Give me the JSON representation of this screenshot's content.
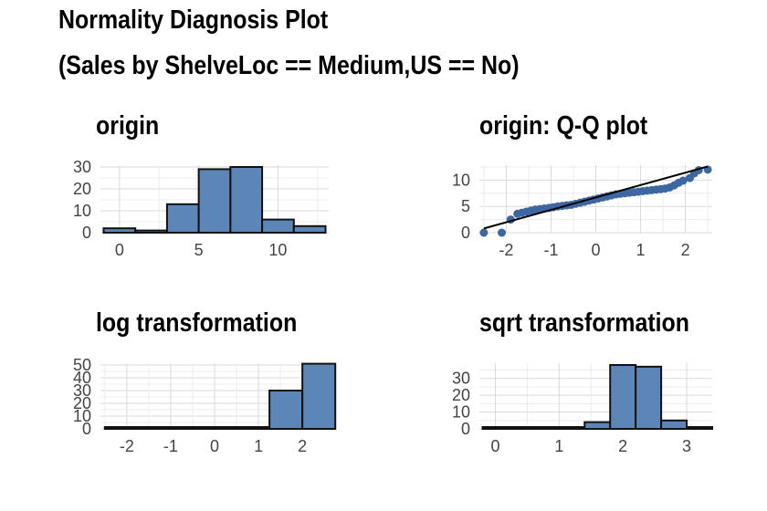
{
  "title": "Normality Diagnosis Plot",
  "subtitle": "(Sales by ShelveLoc == Medium,US == No)",
  "colors": {
    "fill": "#5b86b7",
    "point": "#3d67a0",
    "stroke": "#111111",
    "grid": "#dddddd",
    "tick_text": "#444444"
  },
  "chart_data": [
    {
      "type": "bar",
      "title": "origin",
      "bins": [
        [
          -1,
          1
        ],
        [
          1,
          3
        ],
        [
          3,
          5
        ],
        [
          5,
          7
        ],
        [
          7,
          9
        ],
        [
          9,
          11
        ],
        [
          11,
          13
        ]
      ],
      "values": [
        2,
        1,
        13,
        29,
        30,
        6,
        3
      ],
      "xlim": [
        -1.2,
        13.2
      ],
      "ylim": [
        0,
        30
      ],
      "xticks": [
        0,
        5,
        10
      ],
      "yticks": [
        0,
        10,
        20,
        30
      ]
    },
    {
      "type": "scatter",
      "title": "origin: Q-Q plot",
      "xlabel": "",
      "ylabel": "",
      "xlim": [
        -2.6,
        2.6
      ],
      "ylim": [
        0,
        12.5
      ],
      "xticks": [
        -2,
        -1,
        0,
        1,
        2
      ],
      "yticks": [
        0,
        5,
        10
      ],
      "reference_line": {
        "x": [
          -2.5,
          2.5
        ],
        "y": [
          0.8,
          12.6
        ]
      },
      "points": [
        [
          -2.5,
          0.0
        ],
        [
          -2.1,
          0.0
        ],
        [
          -1.9,
          2.5
        ],
        [
          -1.75,
          3.6
        ],
        [
          -1.65,
          3.8
        ],
        [
          -1.55,
          4.0
        ],
        [
          -1.45,
          4.2
        ],
        [
          -1.35,
          4.4
        ],
        [
          -1.25,
          4.5
        ],
        [
          -1.15,
          4.6
        ],
        [
          -1.05,
          4.7
        ],
        [
          -0.95,
          4.85
        ],
        [
          -0.85,
          5.0
        ],
        [
          -0.75,
          5.1
        ],
        [
          -0.65,
          5.2
        ],
        [
          -0.55,
          5.3
        ],
        [
          -0.45,
          5.5
        ],
        [
          -0.35,
          5.7
        ],
        [
          -0.25,
          5.9
        ],
        [
          -0.15,
          6.1
        ],
        [
          -0.05,
          6.3
        ],
        [
          0.05,
          6.5
        ],
        [
          0.15,
          6.7
        ],
        [
          0.25,
          6.9
        ],
        [
          0.35,
          7.1
        ],
        [
          0.45,
          7.3
        ],
        [
          0.55,
          7.4
        ],
        [
          0.65,
          7.5
        ],
        [
          0.75,
          7.6
        ],
        [
          0.85,
          7.7
        ],
        [
          0.95,
          7.8
        ],
        [
          1.05,
          7.9
        ],
        [
          1.15,
          8.0
        ],
        [
          1.25,
          8.1
        ],
        [
          1.35,
          8.2
        ],
        [
          1.45,
          8.3
        ],
        [
          1.55,
          8.4
        ],
        [
          1.65,
          8.6
        ],
        [
          1.75,
          9.0
        ],
        [
          1.85,
          9.5
        ],
        [
          1.95,
          9.9
        ],
        [
          2.1,
          10.4
        ],
        [
          2.2,
          11.3
        ],
        [
          2.3,
          11.9
        ],
        [
          2.5,
          12.0
        ]
      ]
    },
    {
      "type": "bar",
      "title": "log transformation",
      "bins": [
        [
          -2.5,
          -1.75
        ],
        [
          -1.75,
          -1.0
        ],
        [
          -1.0,
          -0.25
        ],
        [
          -0.25,
          0.5
        ],
        [
          0.5,
          1.25
        ],
        [
          1.25,
          2.0
        ],
        [
          2.0,
          2.75
        ]
      ],
      "values": [
        1,
        0,
        0,
        0,
        1,
        30,
        51
      ],
      "xlim": [
        -2.6,
        2.6
      ],
      "ylim": [
        0,
        50
      ],
      "xticks": [
        -2,
        -1,
        0,
        1,
        2
      ],
      "yticks": [
        0,
        10,
        20,
        30,
        40,
        50
      ]
    },
    {
      "type": "bar",
      "title": "sqrt transformation",
      "bins": [
        [
          -0.2,
          0.2
        ],
        [
          0.2,
          0.6
        ],
        [
          0.6,
          1.0
        ],
        [
          1.0,
          1.4
        ],
        [
          1.4,
          1.8
        ],
        [
          1.8,
          2.2
        ],
        [
          2.2,
          2.6
        ],
        [
          2.6,
          3.0
        ],
        [
          3.0,
          3.4
        ]
      ],
      "values": [
        1,
        1,
        0,
        0,
        4,
        38,
        37,
        5,
        0
      ],
      "xlim": [
        -0.25,
        3.4
      ],
      "ylim": [
        0,
        38
      ],
      "xticks": [
        0,
        1,
        2,
        3
      ],
      "yticks": [
        0,
        10,
        20,
        30
      ]
    }
  ]
}
